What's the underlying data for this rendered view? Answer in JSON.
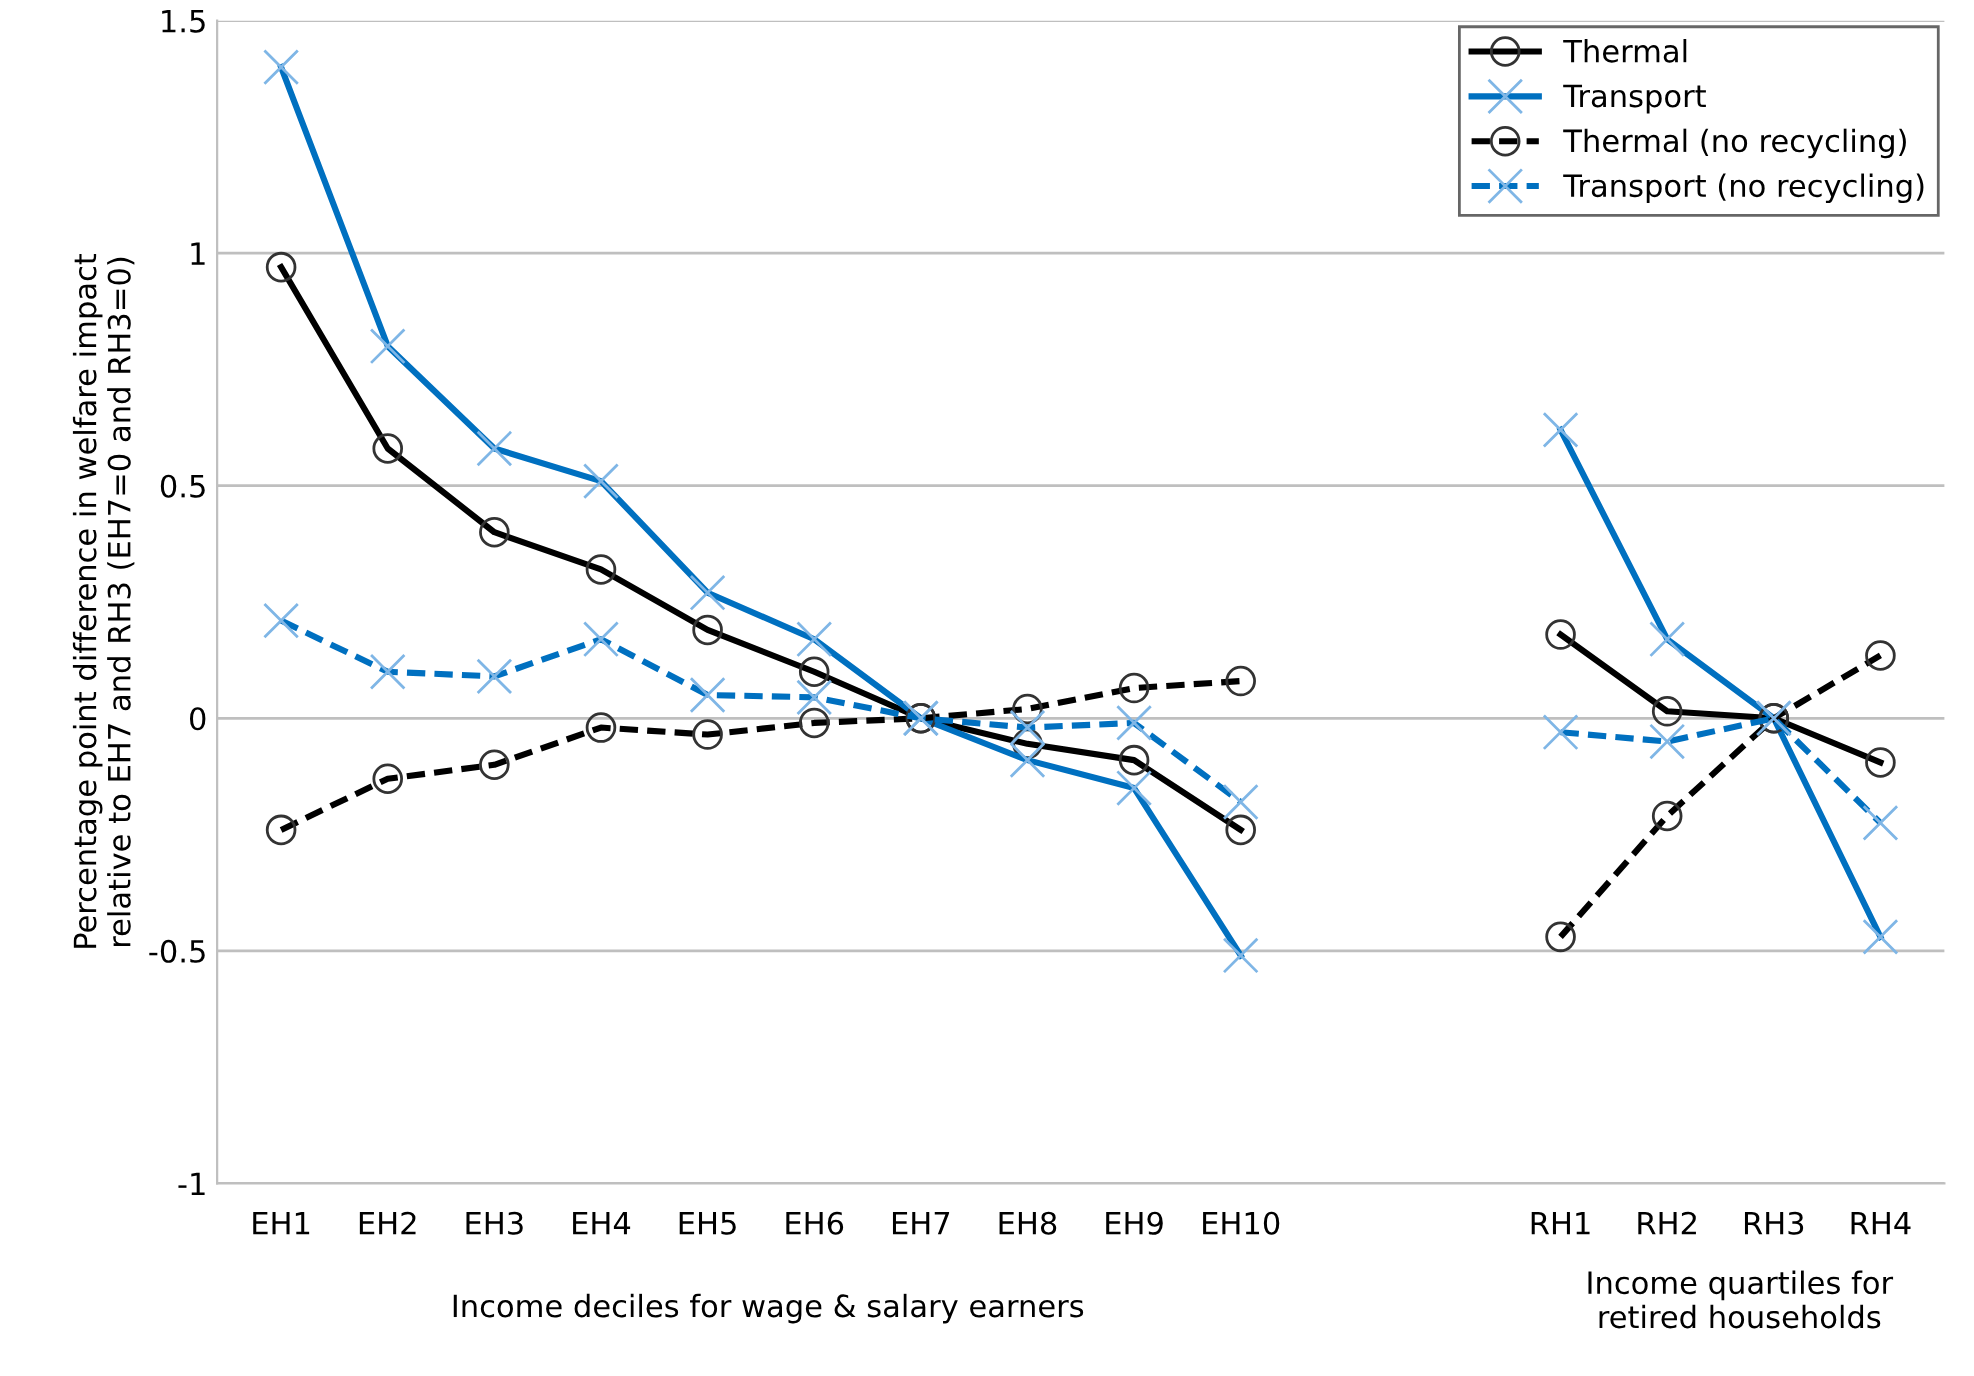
{
  "chart_data": {
    "type": "line",
    "ylabel": "Percentage point difference in welfare impact\nrelative to EH7 and RH3 (EH7=0 and RH3=0)",
    "xlabel": "Income deciles for wage & salary earners",
    "annotations": [
      "Income quartiles for\nretired households"
    ],
    "categories": [
      "EH1",
      "EH2",
      "EH3",
      "EH4",
      "EH5",
      "EH6",
      "EH7",
      "EH8",
      "EH9",
      "EH10",
      null,
      null,
      "RH1",
      "RH2",
      "RH3",
      "RH4"
    ],
    "series": [
      {
        "name": "Thermal",
        "color": "#000000",
        "marker": "circle",
        "line_style": "solid",
        "values": [
          0.97,
          0.58,
          0.4,
          0.32,
          0.19,
          0.1,
          0,
          -0.055,
          -0.09,
          -0.24,
          null,
          null,
          0.18,
          0.015,
          0,
          -0.095
        ]
      },
      {
        "name": "Transport",
        "color": "#0070c0",
        "marker": "cross",
        "line_style": "solid",
        "values": [
          1.4,
          0.8,
          0.58,
          0.51,
          0.27,
          0.17,
          0,
          -0.09,
          -0.15,
          -0.51,
          null,
          null,
          0.62,
          0.17,
          0,
          -0.47
        ]
      },
      {
        "name": "Thermal (no recycling)",
        "color": "#000000",
        "marker": "circle",
        "line_style": "dashed",
        "values": [
          -0.24,
          -0.13,
          -0.1,
          -0.02,
          -0.035,
          -0.01,
          0,
          0.02,
          0.065,
          0.08,
          null,
          null,
          -0.47,
          -0.21,
          0,
          0.135
        ]
      },
      {
        "name": "Transport (no recycling)",
        "color": "#0070c0",
        "marker": "cross",
        "line_style": "dashed",
        "values": [
          0.21,
          0.1,
          0.09,
          0.17,
          0.05,
          0.045,
          0,
          -0.02,
          -0.01,
          -0.18,
          null,
          null,
          -0.03,
          -0.05,
          0,
          -0.225
        ]
      }
    ],
    "ylim": [
      -1,
      1.5
    ],
    "yticks": [
      -1,
      -0.5,
      0,
      0.5,
      1,
      1.5
    ],
    "grid": "y",
    "legend": "top right"
  }
}
